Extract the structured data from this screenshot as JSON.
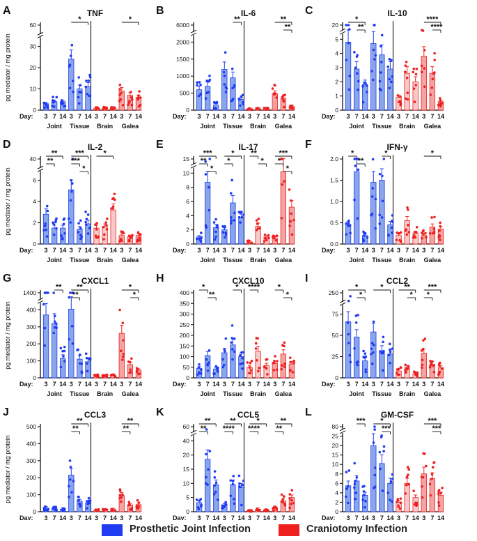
{
  "colors": {
    "joint": "#1f3cf2",
    "joint_fill": "#8aa6ea",
    "galea": "#ef2020",
    "galea_fill": "#f4a3a3",
    "brain_fill": "#f8c9c9",
    "axis": "#111111"
  },
  "ylabel": "pg mediator / mg protein",
  "day_label": "Day:",
  "days": [
    "3",
    "7",
    "14"
  ],
  "groups": [
    "Joint",
    "Tissue",
    "Brain",
    "Galea"
  ],
  "legend": {
    "joint": "Prosthetic Joint Infection",
    "cranio": "Craniotomy Infection"
  },
  "chart_data": [
    {
      "letter": "A",
      "title": "TNF",
      "type": "bar",
      "ylabel_shown": true,
      "ticks": [
        "0",
        "10",
        "20",
        "30",
        "60"
      ],
      "broken": true,
      "values": [
        [
          3,
          4,
          4
        ],
        [
          24,
          10,
          11
        ],
        [
          1,
          1,
          1
        ],
        [
          9,
          7,
          6
        ]
      ],
      "sig": [
        {
          "g": 1,
          "a": 0,
          "b": 2,
          "t": "*"
        },
        {
          "g": 3,
          "a": 0,
          "b": 2,
          "t": "*"
        }
      ]
    },
    {
      "letter": "B",
      "title": "IL-6",
      "type": "bar",
      "ylabel_shown": false,
      "ticks": [
        "0",
        "500",
        "1000",
        "1500",
        "2000",
        "6000"
      ],
      "broken": true,
      "values": [
        [
          600,
          700,
          150
        ],
        [
          1200,
          950,
          320
        ],
        [
          30,
          40,
          40
        ],
        [
          480,
          350,
          110
        ]
      ],
      "sig": [
        {
          "g": 1,
          "a": 1,
          "b": 2,
          "t": "**"
        },
        {
          "g": 3,
          "a": 0,
          "b": 2,
          "t": "**"
        },
        {
          "g": 3,
          "a": 1,
          "b": 2,
          "t": "**"
        }
      ]
    },
    {
      "letter": "C",
      "title": "IL-10",
      "type": "bar",
      "ylabel_shown": false,
      "ticks": [
        "0",
        "1",
        "2",
        "3",
        "4",
        "5",
        "20"
      ],
      "broken": true,
      "values": [
        [
          4.8,
          2.9,
          1.8
        ],
        [
          4.7,
          3.9,
          2.9
        ],
        [
          0.9,
          2.6,
          2.0
        ],
        [
          3.8,
          2.6,
          0.6
        ]
      ],
      "sig": [
        {
          "g": 0,
          "a": 0,
          "b": 2,
          "t": "*"
        },
        {
          "g": 0,
          "a": 1,
          "b": 2,
          "t": "**"
        },
        {
          "g": 3,
          "a": 0,
          "b": 2,
          "t": "****"
        },
        {
          "g": 3,
          "a": 1,
          "b": 2,
          "t": "****"
        }
      ]
    },
    {
      "letter": "D",
      "title": "IL-2",
      "type": "bar",
      "ylabel_shown": true,
      "ticks": [
        "0",
        "2",
        "4",
        "6",
        "40"
      ],
      "broken": true,
      "values": [
        [
          2.8,
          1.5,
          1.5
        ],
        [
          5.1,
          1.4,
          1.9
        ],
        [
          1.5,
          1.6,
          3.2
        ],
        [
          0.8,
          0.7,
          0.8
        ]
      ],
      "sig": [
        {
          "g": 0,
          "a": 0,
          "b": 2,
          "t": "**"
        },
        {
          "g": 0,
          "a": 0,
          "b": 1,
          "t": "**"
        },
        {
          "g": 1,
          "a": 0,
          "b": 2,
          "t": "***"
        },
        {
          "g": 1,
          "a": 0,
          "b": 1,
          "t": "***"
        },
        {
          "g": 1,
          "a": 1,
          "b": 2,
          "t": "*"
        },
        {
          "g": 2,
          "a": 0,
          "b": 2,
          "t": "*"
        }
      ]
    },
    {
      "letter": "E",
      "title": "IL-17",
      "type": "bar",
      "ylabel_shown": false,
      "ticks": [
        "0",
        "2",
        "4",
        "6",
        "8",
        "10",
        "15"
      ],
      "broken": true,
      "values": [
        [
          1.0,
          8.7,
          2.3
        ],
        [
          2.0,
          5.8,
          3.7
        ],
        [
          0.3,
          2.5,
          1.0
        ],
        [
          0.8,
          10.5,
          5.2
        ]
      ],
      "sig": [
        {
          "g": 0,
          "a": 0,
          "b": 2,
          "t": "***"
        },
        {
          "g": 0,
          "a": 0,
          "b": 1,
          "t": "**"
        },
        {
          "g": 0,
          "a": 1,
          "b": 2,
          "t": "*"
        },
        {
          "g": 1,
          "a": 0,
          "b": 2,
          "t": "*"
        },
        {
          "g": 1,
          "a": 0,
          "b": 1,
          "t": "*"
        },
        {
          "g": 2,
          "a": 0,
          "b": 1,
          "t": "**"
        },
        {
          "g": 2,
          "a": 1,
          "b": 2,
          "t": "*"
        },
        {
          "g": 3,
          "a": 0,
          "b": 2,
          "t": "***"
        },
        {
          "g": 3,
          "a": 0,
          "b": 1,
          "t": "*"
        },
        {
          "g": 3,
          "a": 1,
          "b": 2,
          "t": "*"
        }
      ]
    },
    {
      "letter": "F",
      "title": "IFN-γ",
      "type": "bar",
      "ylabel_shown": false,
      "ticks": [
        "0.0",
        "0.5",
        "1.0",
        "1.5",
        "2.0"
      ],
      "broken": false,
      "values": [
        [
          0.45,
          1.7,
          0.2
        ],
        [
          1.45,
          1.5,
          0.45
        ],
        [
          0.2,
          0.55,
          0.25
        ],
        [
          0.2,
          0.4,
          0.35
        ]
      ],
      "sig": [
        {
          "g": 0,
          "a": 0,
          "b": 1,
          "t": "*"
        },
        {
          "g": 0,
          "a": 1,
          "b": 2,
          "t": "**"
        },
        {
          "g": 1,
          "a": 1,
          "b": 2,
          "t": "*"
        },
        {
          "g": 3,
          "a": 0,
          "b": 2,
          "t": "*"
        }
      ]
    },
    {
      "letter": "G",
      "title": "CXCL1",
      "type": "bar",
      "ylabel_shown": true,
      "ticks": [
        "0",
        "100",
        "200",
        "300",
        "400",
        "1400"
      ],
      "broken": true,
      "values": [
        [
          370,
          320,
          115
        ],
        [
          440,
          110,
          95
        ],
        [
          12,
          12,
          15
        ],
        [
          262,
          78,
          45
        ]
      ],
      "sig": [
        {
          "g": 0,
          "a": 1,
          "b": 2,
          "t": "**"
        },
        {
          "g": 1,
          "a": 0,
          "b": 2,
          "t": "**"
        },
        {
          "g": 1,
          "a": 0,
          "b": 1,
          "t": "**"
        },
        {
          "g": 3,
          "a": 0,
          "b": 2,
          "t": "*"
        },
        {
          "g": 3,
          "a": 1,
          "b": 2,
          "t": "*"
        }
      ]
    },
    {
      "letter": "H",
      "title": "CXCL10",
      "type": "bar",
      "ylabel_shown": false,
      "ticks": [
        "0",
        "50",
        "100",
        "150",
        "200",
        "250",
        "300",
        "350",
        "400"
      ],
      "broken": false,
      "values": [
        [
          45,
          105,
          42
        ],
        [
          118,
          155,
          100
        ],
        [
          50,
          125,
          58
        ],
        [
          68,
          112,
          65
        ]
      ],
      "sig": [
        {
          "g": 0,
          "a": 0,
          "b": 1,
          "t": "*"
        },
        {
          "g": 0,
          "a": 1,
          "b": 2,
          "t": "**"
        },
        {
          "g": 1,
          "a": 1,
          "b": 2,
          "t": "*"
        },
        {
          "g": 2,
          "a": 0,
          "b": 1,
          "t": "****"
        },
        {
          "g": 3,
          "a": 0,
          "b": 1,
          "t": "*"
        },
        {
          "g": 3,
          "a": 1,
          "b": 2,
          "t": "*"
        }
      ]
    },
    {
      "letter": "I",
      "title": "CCL2",
      "type": "bar",
      "ylabel_shown": false,
      "ticks": [
        "0",
        "25",
        "50",
        "75",
        "250"
      ],
      "broken": true,
      "values": [
        [
          66,
          48,
          20
        ],
        [
          54,
          32,
          28
        ],
        [
          8,
          12,
          5
        ],
        [
          29,
          16,
          12
        ]
      ],
      "sig": [
        {
          "g": 0,
          "a": 0,
          "b": 2,
          "t": "*"
        },
        {
          "g": 0,
          "a": 1,
          "b": 2,
          "t": "*"
        },
        {
          "g": 1,
          "a": 0,
          "b": 2,
          "t": "*"
        },
        {
          "g": 2,
          "a": 0,
          "b": 2,
          "t": "**"
        },
        {
          "g": 2,
          "a": 1,
          "b": 2,
          "t": "*"
        },
        {
          "g": 3,
          "a": 0,
          "b": 2,
          "t": "***"
        },
        {
          "g": 3,
          "a": 0,
          "b": 1,
          "t": "*"
        }
      ]
    },
    {
      "letter": "J",
      "title": "CCL3",
      "type": "bar",
      "ylabel_shown": true,
      "ticks": [
        "0",
        "100",
        "200",
        "300",
        "400",
        "500"
      ],
      "broken": false,
      "values": [
        [
          22,
          20,
          15
        ],
        [
          215,
          62,
          52
        ],
        [
          8,
          10,
          12
        ],
        [
          95,
          40,
          42
        ]
      ],
      "sig": [
        {
          "g": 1,
          "a": 0,
          "b": 2,
          "t": "**"
        },
        {
          "g": 1,
          "a": 0,
          "b": 1,
          "t": "**"
        },
        {
          "g": 3,
          "a": 0,
          "b": 2,
          "t": "**"
        },
        {
          "g": 3,
          "a": 0,
          "b": 1,
          "t": "**"
        }
      ]
    },
    {
      "letter": "K",
      "title": "CCL5",
      "type": "bar",
      "ylabel_shown": false,
      "ticks": [
        "0",
        "5",
        "10",
        "15",
        "20",
        "40",
        "60"
      ],
      "broken": true,
      "values": [
        [
          3.2,
          18.5,
          9.5
        ],
        [
          2.4,
          9.5,
          8.5
        ],
        [
          0.3,
          0.8,
          0.5
        ],
        [
          1.5,
          3.8,
          5.0
        ]
      ],
      "sig": [
        {
          "g": 0,
          "a": 0,
          "b": 2,
          "t": "**"
        },
        {
          "g": 0,
          "a": 0,
          "b": 1,
          "t": "**"
        },
        {
          "g": 1,
          "a": 0,
          "b": 2,
          "t": "**"
        },
        {
          "g": 1,
          "a": 0,
          "b": 1,
          "t": "****"
        },
        {
          "g": 2,
          "a": 0,
          "b": 2,
          "t": "*"
        },
        {
          "g": 2,
          "a": 0,
          "b": 1,
          "t": "****"
        },
        {
          "g": 3,
          "a": 0,
          "b": 2,
          "t": "**"
        },
        {
          "g": 3,
          "a": 0,
          "b": 1,
          "t": "**"
        }
      ]
    },
    {
      "letter": "L",
      "title": "GM-CSF",
      "type": "bar",
      "ylabel_shown": false,
      "ticks": [
        "0",
        "2",
        "4",
        "6",
        "8",
        "10",
        "15",
        "20",
        "25",
        "80"
      ],
      "broken": true,
      "values": [
        [
          5.5,
          6.5,
          3.5
        ],
        [
          20,
          10.5,
          6
        ],
        [
          2,
          6,
          3
        ],
        [
          8,
          7,
          3.5
        ]
      ],
      "sig": [
        {
          "g": 0,
          "a": 1,
          "b": 2,
          "t": "***"
        },
        {
          "g": 1,
          "a": 0,
          "b": 2,
          "t": "*"
        },
        {
          "g": 1,
          "a": 1,
          "b": 2,
          "t": "***"
        },
        {
          "g": 3,
          "a": 0,
          "b": 2,
          "t": "***"
        },
        {
          "g": 3,
          "a": 1,
          "b": 2,
          "t": "***"
        }
      ]
    }
  ]
}
